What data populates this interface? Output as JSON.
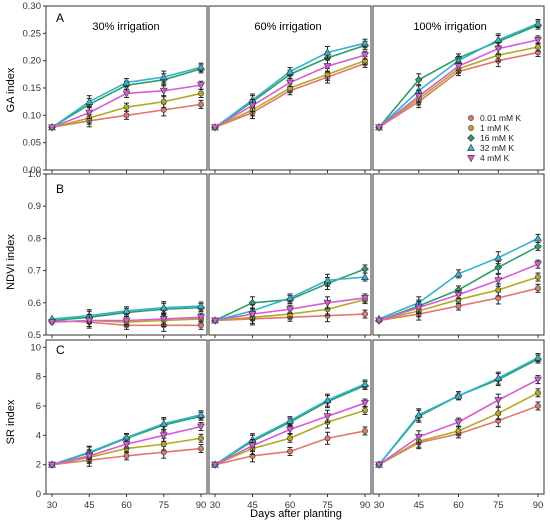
{
  "figure": {
    "xlabel": "Days after planting",
    "row_labels": [
      "GA index",
      "NDVI index",
      "SR index"
    ],
    "panel_letters": [
      "A",
      "B",
      "C"
    ],
    "column_titles": [
      "30% irrigation",
      "60% irrigation",
      "100% irrigation"
    ],
    "colors": {
      "0.01 mM K": "#e0786e",
      "1 mM K": "#b5a923",
      "16 mM K": "#2e9e6a",
      "32 mM K": "#33b3cf",
      "4 mM K": "#d95ad9"
    },
    "legend_position": "inside top-right of panel A-100%"
  },
  "chart_data": [
    {
      "type": "line",
      "row": "GA",
      "column": "30% irrigation",
      "panel_letter": "A",
      "x": [
        30,
        45,
        60,
        75,
        90
      ],
      "ylabel": "GA index",
      "ylim": [
        0,
        0.3
      ],
      "yticks": [
        0.0,
        0.05,
        0.1,
        0.15,
        0.2,
        0.25,
        0.3
      ],
      "series": [
        {
          "name": "0.01 mM K",
          "values": [
            0.078,
            0.09,
            0.1,
            0.11,
            0.12
          ]
        },
        {
          "name": "1 mM K",
          "values": [
            0.078,
            0.095,
            0.115,
            0.125,
            0.14
          ]
        },
        {
          "name": "16 mM K",
          "values": [
            0.078,
            0.12,
            0.155,
            0.165,
            0.185
          ]
        },
        {
          "name": "32 mM K",
          "values": [
            0.078,
            0.125,
            0.16,
            0.17,
            0.188
          ]
        },
        {
          "name": "4 mM K",
          "values": [
            0.078,
            0.105,
            0.14,
            0.145,
            0.155
          ]
        }
      ]
    },
    {
      "type": "line",
      "row": "GA",
      "column": "60% irrigation",
      "x": [
        30,
        45,
        60,
        75,
        90
      ],
      "ylim": [
        0,
        0.3
      ],
      "series": [
        {
          "name": "0.01 mM K",
          "values": [
            0.078,
            0.105,
            0.145,
            0.17,
            0.195
          ]
        },
        {
          "name": "1 mM K",
          "values": [
            0.078,
            0.11,
            0.15,
            0.175,
            0.2
          ]
        },
        {
          "name": "16 mM K",
          "values": [
            0.078,
            0.125,
            0.175,
            0.205,
            0.228
          ]
        },
        {
          "name": "32 mM K",
          "values": [
            0.078,
            0.128,
            0.18,
            0.215,
            0.232
          ]
        },
        {
          "name": "4 mM K",
          "values": [
            0.078,
            0.118,
            0.16,
            0.19,
            0.21
          ]
        }
      ]
    },
    {
      "type": "line",
      "row": "GA",
      "column": "100% irrigation",
      "x": [
        30,
        45,
        60,
        75,
        90
      ],
      "ylim": [
        0,
        0.3
      ],
      "series": [
        {
          "name": "0.01 mM K",
          "values": [
            0.078,
            0.125,
            0.18,
            0.2,
            0.215
          ]
        },
        {
          "name": "1 mM K",
          "values": [
            0.078,
            0.13,
            0.185,
            0.21,
            0.225
          ]
        },
        {
          "name": "16 mM K",
          "values": [
            0.078,
            0.165,
            0.205,
            0.235,
            0.265
          ]
        },
        {
          "name": "32 mM K",
          "values": [
            0.078,
            0.145,
            0.2,
            0.238,
            0.268
          ]
        },
        {
          "name": "4 mM K",
          "values": [
            0.078,
            0.135,
            0.19,
            0.222,
            0.238
          ]
        }
      ]
    },
    {
      "type": "line",
      "row": "NDVI",
      "column": "30% irrigation",
      "panel_letter": "B",
      "x": [
        30,
        45,
        60,
        75,
        90
      ],
      "ylabel": "NDVI index",
      "ylim": [
        0.5,
        1.0
      ],
      "yticks": [
        0.5,
        0.6,
        0.7,
        0.8,
        0.9,
        1.0
      ],
      "series": [
        {
          "name": "0.01 mM K",
          "values": [
            0.545,
            0.54,
            0.53,
            0.53,
            0.53
          ]
        },
        {
          "name": "1 mM K",
          "values": [
            0.54,
            0.545,
            0.54,
            0.545,
            0.55
          ]
        },
        {
          "name": "16 mM K",
          "values": [
            0.545,
            0.555,
            0.57,
            0.58,
            0.585
          ]
        },
        {
          "name": "32 mM K",
          "values": [
            0.55,
            0.56,
            0.575,
            0.585,
            0.59
          ]
        },
        {
          "name": "4 mM K",
          "values": [
            0.54,
            0.545,
            0.545,
            0.55,
            0.555
          ]
        }
      ]
    },
    {
      "type": "line",
      "row": "NDVI",
      "column": "60% irrigation",
      "x": [
        30,
        45,
        60,
        75,
        90
      ],
      "ylim": [
        0.5,
        1.0
      ],
      "series": [
        {
          "name": "0.01 mM K",
          "values": [
            0.545,
            0.55,
            0.555,
            0.56,
            0.565
          ]
        },
        {
          "name": "1 mM K",
          "values": [
            0.545,
            0.555,
            0.565,
            0.58,
            0.61
          ]
        },
        {
          "name": "16 mM K",
          "values": [
            0.545,
            0.6,
            0.61,
            0.66,
            0.705
          ]
        },
        {
          "name": "32 mM K",
          "values": [
            0.545,
            0.575,
            0.615,
            0.67,
            0.68
          ]
        },
        {
          "name": "4 mM K",
          "values": [
            0.545,
            0.565,
            0.58,
            0.6,
            0.615
          ]
        }
      ]
    },
    {
      "type": "line",
      "row": "NDVI",
      "column": "100% irrigation",
      "x": [
        30,
        45,
        60,
        75,
        90
      ],
      "ylim": [
        0.5,
        1.0
      ],
      "series": [
        {
          "name": "0.01 mM K",
          "values": [
            0.545,
            0.565,
            0.59,
            0.615,
            0.645
          ]
        },
        {
          "name": "1 mM K",
          "values": [
            0.545,
            0.575,
            0.61,
            0.64,
            0.68
          ]
        },
        {
          "name": "16 mM K",
          "values": [
            0.545,
            0.59,
            0.64,
            0.71,
            0.775
          ]
        },
        {
          "name": "32 mM K",
          "values": [
            0.55,
            0.6,
            0.69,
            0.74,
            0.8
          ]
        },
        {
          "name": "4 mM K",
          "values": [
            0.545,
            0.585,
            0.625,
            0.67,
            0.72
          ]
        }
      ]
    },
    {
      "type": "line",
      "row": "SR",
      "column": "30% irrigation",
      "panel_letter": "C",
      "x": [
        30,
        45,
        60,
        75,
        90
      ],
      "ylabel": "SR index",
      "ylim": [
        0,
        10.5
      ],
      "yticks": [
        0,
        2,
        4,
        6,
        8,
        10
      ],
      "series": [
        {
          "name": "0.01 mM K",
          "values": [
            2.0,
            2.3,
            2.6,
            2.85,
            3.1
          ]
        },
        {
          "name": "1 mM K",
          "values": [
            2.0,
            2.5,
            3.1,
            3.4,
            3.8
          ]
        },
        {
          "name": "16 mM K",
          "values": [
            2.0,
            2.8,
            3.8,
            4.7,
            5.3
          ]
        },
        {
          "name": "32 mM K",
          "values": [
            2.0,
            2.85,
            3.85,
            4.8,
            5.4
          ]
        },
        {
          "name": "4 mM K",
          "values": [
            2.0,
            2.6,
            3.4,
            4.0,
            4.6
          ]
        }
      ]
    },
    {
      "type": "line",
      "row": "SR",
      "column": "60% irrigation",
      "x": [
        30,
        45,
        60,
        75,
        90
      ],
      "ylim": [
        0,
        10.5
      ],
      "series": [
        {
          "name": "0.01 mM K",
          "values": [
            2.0,
            2.6,
            2.9,
            3.8,
            4.3
          ]
        },
        {
          "name": "1 mM K",
          "values": [
            2.0,
            3.1,
            3.8,
            4.9,
            5.7
          ]
        },
        {
          "name": "16 mM K",
          "values": [
            2.0,
            3.6,
            4.9,
            6.3,
            7.4
          ]
        },
        {
          "name": "32 mM K",
          "values": [
            2.0,
            3.7,
            5.0,
            6.4,
            7.5
          ]
        },
        {
          "name": "4 mM K",
          "values": [
            2.0,
            3.3,
            4.4,
            5.3,
            6.2
          ]
        }
      ]
    },
    {
      "type": "line",
      "row": "SR",
      "column": "100% irrigation",
      "x": [
        30,
        45,
        60,
        75,
        90
      ],
      "ylim": [
        0,
        10.5
      ],
      "series": [
        {
          "name": "0.01 mM K",
          "values": [
            2.0,
            3.5,
            4.1,
            5.0,
            6.0
          ]
        },
        {
          "name": "1 mM K",
          "values": [
            2.0,
            3.6,
            4.3,
            5.5,
            6.9
          ]
        },
        {
          "name": "16 mM K",
          "values": [
            2.0,
            5.3,
            6.7,
            7.8,
            9.2
          ]
        },
        {
          "name": "32 mM K",
          "values": [
            2.0,
            5.4,
            6.7,
            7.9,
            9.3
          ]
        },
        {
          "name": "4 mM K",
          "values": [
            2.0,
            3.9,
            4.9,
            6.4,
            7.8
          ]
        }
      ]
    }
  ]
}
